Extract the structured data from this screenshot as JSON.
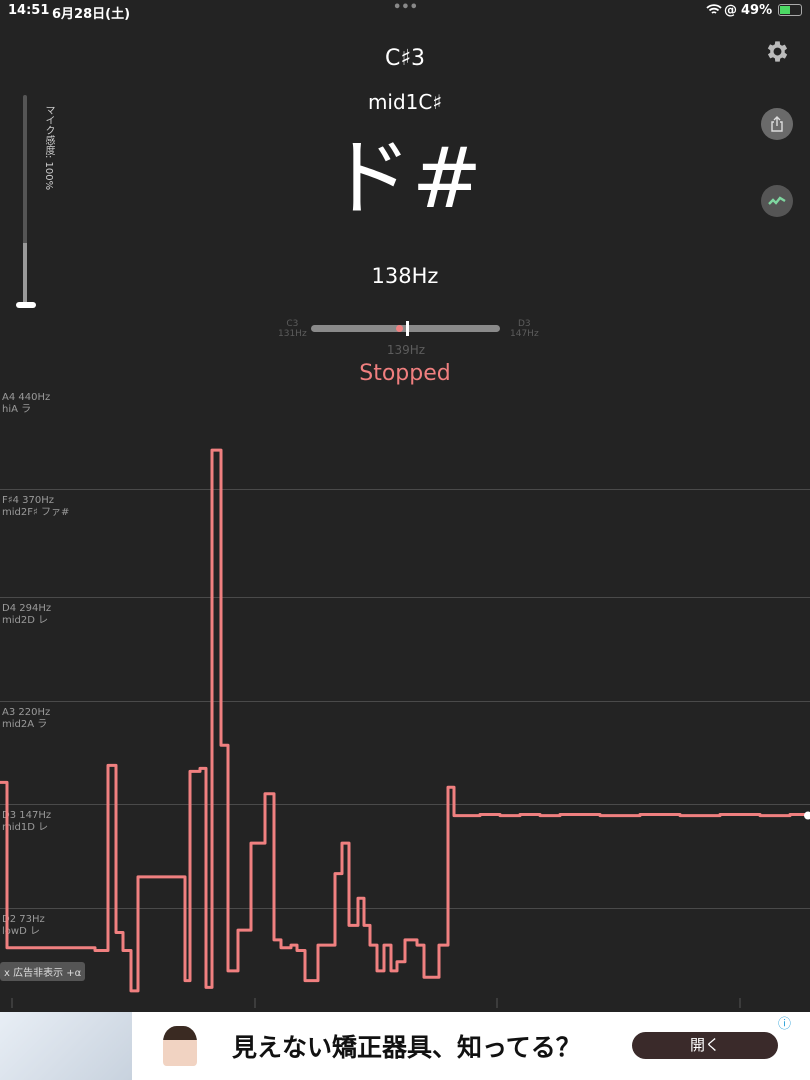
{
  "status_bar": {
    "time": "14:51",
    "date": "6月28日(土)",
    "battery": "49%",
    "dots": "•••"
  },
  "pitch": {
    "note": "C♯3",
    "alias": "mid1C♯",
    "kana": "ド#",
    "frequency": "138Hz",
    "state": "Stopped"
  },
  "tuner": {
    "left_note": "C3",
    "left_hz": "131Hz",
    "right_note": "D3",
    "right_hz": "147Hz",
    "center_hz": "139Hz",
    "needle_position_percent": 50,
    "marker_position_percent": 45
  },
  "mic": {
    "label": "マイク感度: 100%",
    "level_percent": 100,
    "fill_percent": 30
  },
  "icons": {
    "settings": "gear-icon",
    "share": "share-icon",
    "graph": "waveform-icon"
  },
  "colors": {
    "trace": "#f08080",
    "accent_text": "#f07f7f",
    "background": "#232323"
  },
  "chart_data": {
    "type": "line",
    "ylabel": "",
    "xlabel": "",
    "y_scale": "log",
    "levels": [
      {
        "name": "A4  440Hz",
        "alias": "hiA ラ",
        "hz": 440
      },
      {
        "name": "F♯4  370Hz",
        "alias": "mid2F♯ ファ#",
        "hz": 370
      },
      {
        "name": "D4  294Hz",
        "alias": "mid2D レ",
        "hz": 294
      },
      {
        "name": "A3  220Hz",
        "alias": "mid2A ラ",
        "hz": 220
      },
      {
        "name": "D3  147Hz",
        "alias": "mid1D レ",
        "hz": 147
      },
      {
        "name": "D2   73Hz",
        "alias": "lowD レ",
        "hz": 73
      }
    ],
    "series": [
      {
        "values": [
          [
            0,
            160
          ],
          [
            7,
            56
          ],
          [
            95,
            55
          ],
          [
            108,
            171
          ],
          [
            116,
            62
          ],
          [
            123,
            55
          ],
          [
            131,
            42
          ],
          [
            138,
            90
          ],
          [
            185,
            45
          ],
          [
            190,
            167
          ],
          [
            200,
            169
          ],
          [
            206,
            43
          ],
          [
            212,
            395
          ],
          [
            221,
            185
          ],
          [
            228,
            48
          ],
          [
            238,
            63
          ],
          [
            251,
            113
          ],
          [
            265,
            153
          ],
          [
            274,
            59
          ],
          [
            281,
            56
          ],
          [
            291,
            57
          ],
          [
            297,
            55
          ],
          [
            305,
            45
          ],
          [
            318,
            57
          ],
          [
            335,
            92
          ],
          [
            342,
            113
          ],
          [
            349,
            65
          ],
          [
            358,
            78
          ],
          [
            364,
            65
          ],
          [
            370,
            57
          ],
          [
            377,
            48
          ],
          [
            384,
            57
          ],
          [
            391,
            48
          ],
          [
            397,
            51
          ],
          [
            405,
            59
          ],
          [
            417,
            57
          ],
          [
            424,
            46
          ],
          [
            439,
            57
          ],
          [
            448,
            157
          ],
          [
            454,
            136
          ],
          [
            480,
            137
          ],
          [
            500,
            136
          ],
          [
            520,
            137
          ],
          [
            540,
            136
          ],
          [
            560,
            137
          ],
          [
            600,
            136
          ],
          [
            640,
            137
          ],
          [
            680,
            136
          ],
          [
            720,
            137
          ],
          [
            760,
            136
          ],
          [
            790,
            137
          ],
          [
            808,
            136
          ]
        ]
      }
    ]
  },
  "ad_remove": "x 広告非表示 +α",
  "ad": {
    "headline": "見えない矯正器具、知ってる？",
    "button": "開く",
    "info": "ⓘ"
  }
}
